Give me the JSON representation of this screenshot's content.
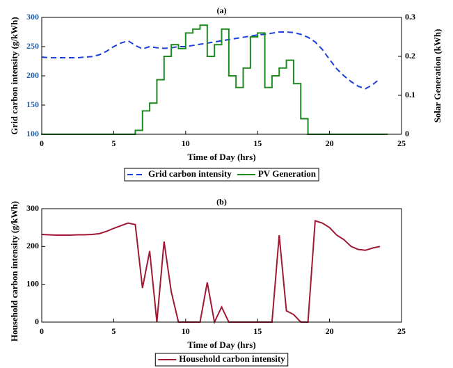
{
  "chart_data": [
    {
      "type": "line",
      "title": "(a)",
      "xlabel": "Time of Day (hrs)",
      "ylabel": "Grid carbon intensity (g/kWh)",
      "y2label": "Solar Generation (kWh)",
      "x": [
        0,
        0.5,
        1,
        1.5,
        2,
        2.5,
        3,
        3.5,
        4,
        4.5,
        5,
        5.5,
        6,
        6.5,
        7,
        7.5,
        8,
        8.5,
        9,
        9.5,
        10,
        10.5,
        11,
        11.5,
        12,
        12.5,
        13,
        13.5,
        14,
        14.5,
        15,
        15.5,
        16,
        16.5,
        17,
        17.5,
        18,
        18.5,
        19,
        19.5,
        20,
        20.5,
        21,
        21.5,
        22,
        22.5,
        23,
        23.5
      ],
      "xlim": [
        0,
        25
      ],
      "xticks": [
        0,
        5,
        10,
        15,
        20,
        25
      ],
      "ylim": [
        100,
        300
      ],
      "yticks": [
        100,
        150,
        200,
        250,
        300
      ],
      "y2lim": [
        0,
        0.3
      ],
      "y2ticks": [
        0,
        0.1,
        0.2,
        0.3
      ],
      "series": [
        {
          "name": "Grid carbon intensity",
          "color": "#1a3fdc",
          "style": "dashed",
          "values": [
            232,
            231,
            231,
            231,
            231,
            231,
            232,
            233,
            236,
            242,
            250,
            256,
            260,
            252,
            246,
            250,
            248,
            247,
            248,
            250,
            250,
            252,
            254,
            256,
            258,
            260,
            262,
            264,
            266,
            268,
            270,
            271,
            273,
            275,
            275,
            274,
            271,
            266,
            258,
            245,
            228,
            212,
            200,
            190,
            182,
            178,
            185,
            195
          ]
        },
        {
          "name": "PV Generation",
          "color": "#1e8a1e",
          "axis": "y2",
          "style": "step",
          "values": [
            0,
            0,
            0,
            0,
            0,
            0,
            0,
            0,
            0,
            0,
            0,
            0,
            0,
            0.01,
            0.06,
            0.08,
            0.14,
            0.2,
            0.23,
            0.22,
            0.26,
            0.27,
            0.28,
            0.2,
            0.23,
            0.27,
            0.15,
            0.12,
            0.17,
            0.25,
            0.26,
            0.12,
            0.15,
            0.17,
            0.19,
            0.13,
            0.04,
            0,
            0,
            0,
            0,
            0,
            0,
            0,
            0,
            0,
            0,
            0
          ]
        }
      ]
    },
    {
      "type": "line",
      "title": "(b)",
      "xlabel": "Time of Day (hrs)",
      "ylabel": "Household carbon intensity (g/kWh)",
      "x": [
        0,
        0.5,
        1,
        1.5,
        2,
        2.5,
        3,
        3.5,
        4,
        4.5,
        5,
        5.5,
        6,
        6.5,
        7,
        7.5,
        8,
        8.5,
        9,
        9.5,
        10,
        10.5,
        11,
        11.5,
        12,
        12.5,
        13,
        13.5,
        14,
        14.5,
        15,
        15.5,
        16,
        16.5,
        17,
        17.5,
        18,
        18.5,
        19,
        19.5,
        20,
        20.5,
        21,
        21.5,
        22,
        22.5,
        23,
        23.5
      ],
      "xlim": [
        0,
        25
      ],
      "xticks": [
        0,
        5,
        10,
        15,
        20,
        25
      ],
      "ylim": [
        0,
        300
      ],
      "yticks": [
        0,
        100,
        200,
        300
      ],
      "series": [
        {
          "name": "Household carbon intensity",
          "color": "#a01832",
          "style": "solid",
          "values": [
            232,
            231,
            230,
            230,
            230,
            231,
            231,
            232,
            234,
            240,
            248,
            255,
            262,
            258,
            90,
            188,
            0,
            213,
            80,
            0,
            0,
            0,
            0,
            105,
            0,
            40,
            0,
            0,
            0,
            0,
            0,
            0,
            0,
            230,
            30,
            20,
            0,
            0,
            268,
            262,
            250,
            230,
            218,
            200,
            192,
            190,
            196,
            200
          ]
        }
      ]
    }
  ]
}
